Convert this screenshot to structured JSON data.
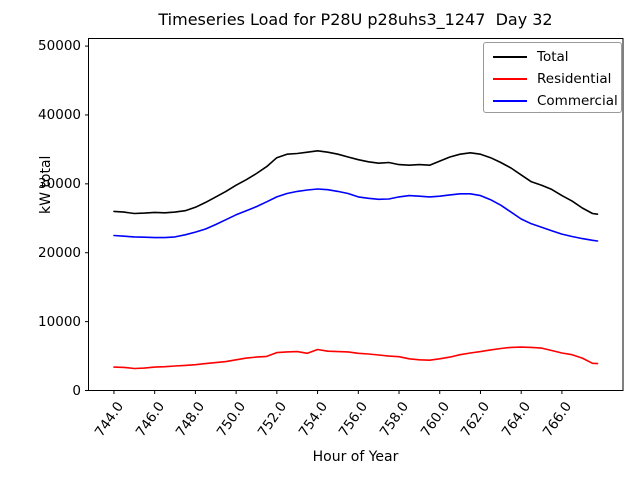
{
  "chart_data": {
    "type": "line",
    "title": "Timeseries Load for P28U p28uhs3_1247  Day 32",
    "xlabel": "Hour of Year",
    "ylabel": "kW total",
    "xlim": [
      742.75,
      769.0
    ],
    "ylim": [
      0,
      51100
    ],
    "grid": false,
    "legend_position": "upper right",
    "x_tick_rotation": 55,
    "xticks": [
      744,
      746,
      748,
      750,
      752,
      754,
      756,
      758,
      760,
      762,
      764,
      766
    ],
    "xtick_labels": [
      "744.0",
      "746.0",
      "748.0",
      "750.0",
      "752.0",
      "754.0",
      "756.0",
      "758.0",
      "760.0",
      "762.0",
      "764.0",
      "766.0"
    ],
    "yticks": [
      0,
      10000,
      20000,
      30000,
      40000,
      50000
    ],
    "ytick_labels": [
      "0",
      "10000",
      "20000",
      "30000",
      "40000",
      "50000"
    ],
    "legend": [
      "Total",
      "Residential",
      "Commercial"
    ],
    "x": [
      744,
      744.5,
      745,
      745.5,
      746,
      746.5,
      747,
      747.5,
      748,
      748.5,
      749,
      749.5,
      750,
      750.5,
      751,
      751.5,
      752,
      752.5,
      753,
      753.5,
      754,
      754.5,
      755,
      755.5,
      756,
      756.5,
      757,
      757.5,
      758,
      758.5,
      759,
      759.5,
      760,
      760.5,
      761,
      761.5,
      762,
      762.5,
      763,
      763.5,
      764,
      764.5,
      765,
      765.5,
      766,
      766.5,
      767,
      767.5,
      767.75
    ],
    "series": [
      {
        "name": "Total",
        "color": "#000000",
        "values": [
          26000,
          25900,
          25700,
          25750,
          25850,
          25800,
          25900,
          26100,
          26600,
          27300,
          28100,
          28900,
          29800,
          30600,
          31500,
          32500,
          33800,
          34300,
          34400,
          34600,
          34800,
          34600,
          34300,
          33900,
          33500,
          33200,
          33000,
          33100,
          32800,
          32700,
          32800,
          32700,
          33300,
          33900,
          34300,
          34500,
          34300,
          33800,
          33100,
          32300,
          31300,
          30300,
          29800,
          29200,
          28300,
          27500,
          26500,
          25700,
          25600
        ]
      },
      {
        "name": "Residential",
        "color": "#ff0000",
        "values": [
          3400,
          3350,
          3200,
          3250,
          3400,
          3450,
          3550,
          3650,
          3750,
          3900,
          4050,
          4200,
          4450,
          4700,
          4850,
          4950,
          5500,
          5600,
          5650,
          5400,
          5950,
          5700,
          5650,
          5600,
          5400,
          5300,
          5150,
          5000,
          4900,
          4600,
          4450,
          4400,
          4600,
          4850,
          5200,
          5450,
          5650,
          5900,
          6100,
          6250,
          6300,
          6250,
          6150,
          5800,
          5450,
          5200,
          4700,
          3950,
          3900
        ]
      },
      {
        "name": "Commercial",
        "color": "#0000ff",
        "values": [
          22500,
          22400,
          22300,
          22250,
          22200,
          22200,
          22300,
          22600,
          23000,
          23450,
          24100,
          24800,
          25500,
          26100,
          26700,
          27400,
          28100,
          28600,
          28900,
          29100,
          29250,
          29150,
          28900,
          28600,
          28100,
          27900,
          27750,
          27800,
          28100,
          28300,
          28200,
          28100,
          28200,
          28400,
          28550,
          28550,
          28300,
          27700,
          26900,
          25900,
          24900,
          24200,
          23700,
          23200,
          22700,
          22350,
          22050,
          21800,
          21700
        ]
      }
    ],
    "colors": {
      "axes": "#000000",
      "background": "#ffffff",
      "legend_border": "#999999"
    }
  }
}
